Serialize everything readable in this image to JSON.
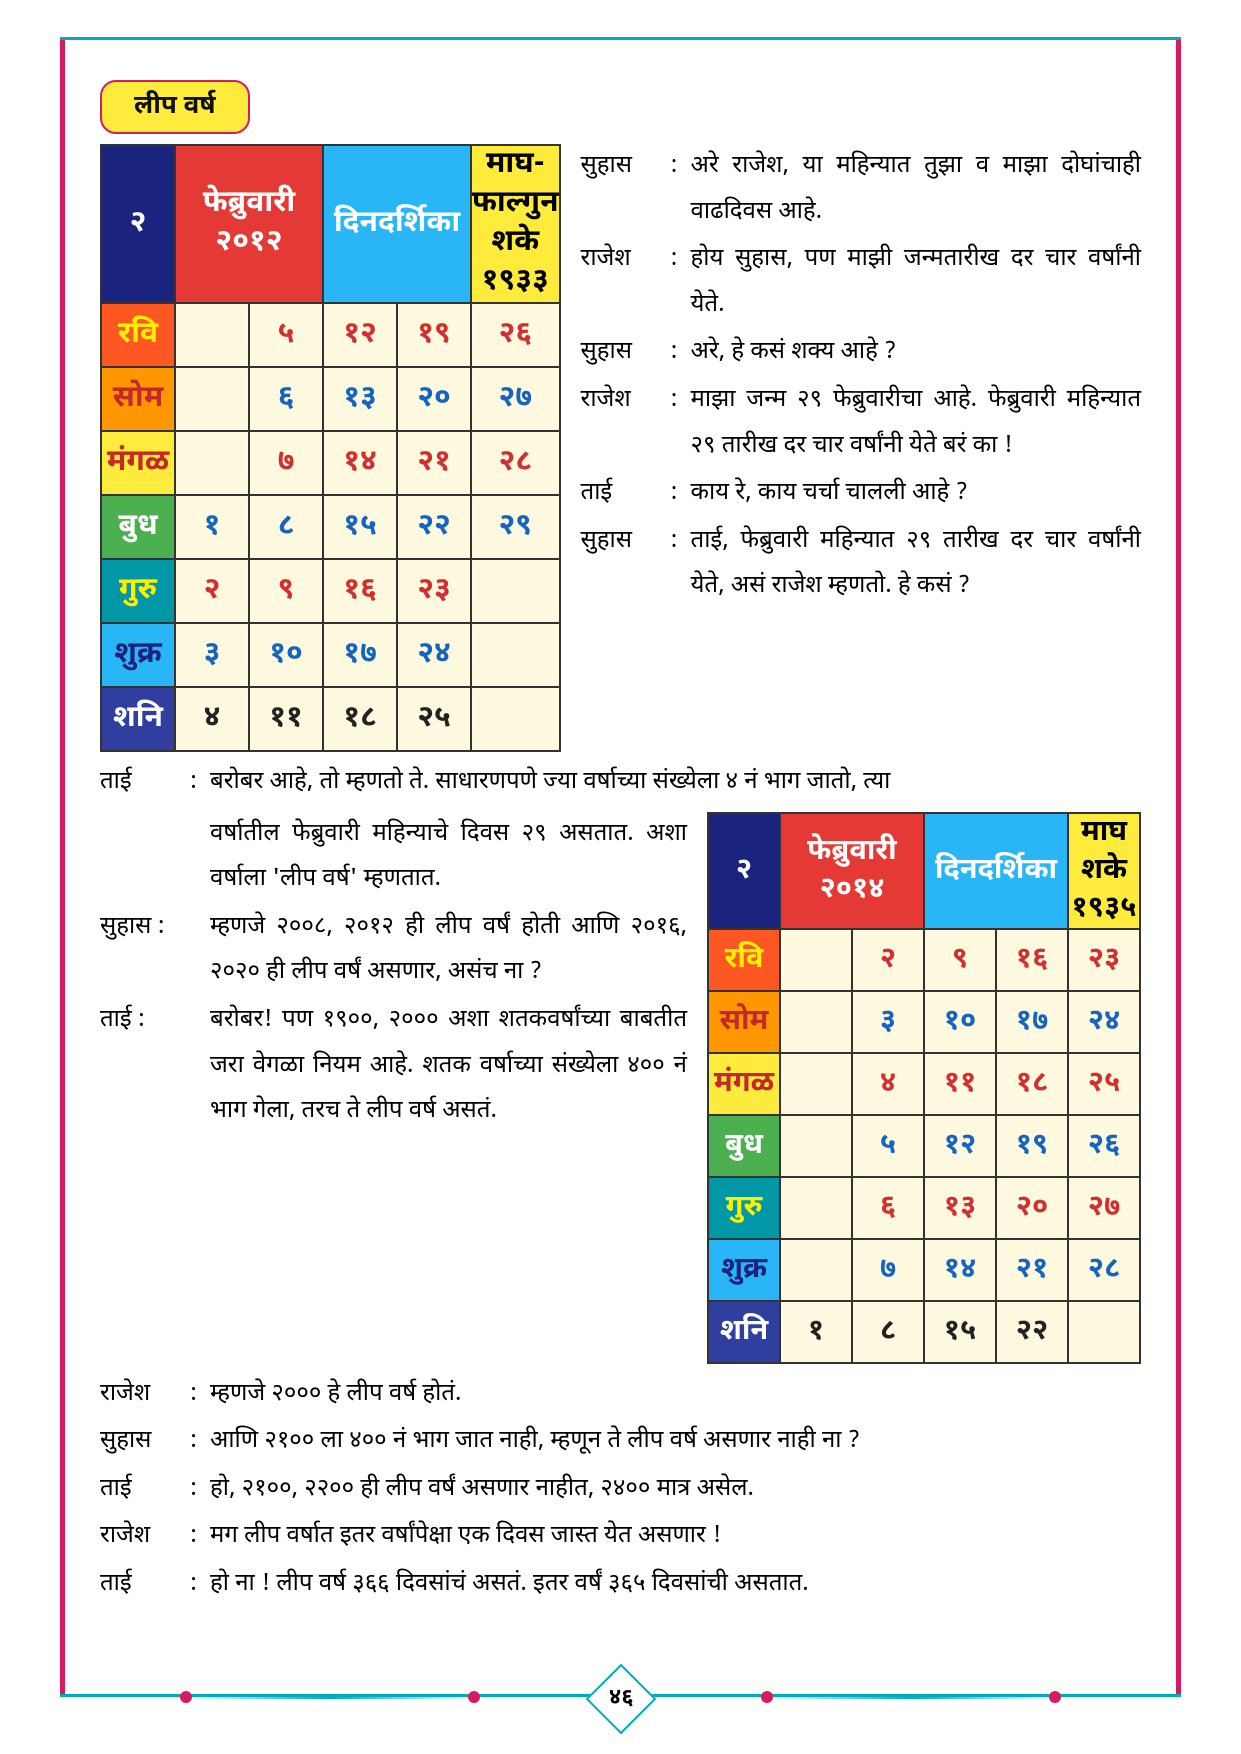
{
  "section_title": "लीप वर्ष",
  "page_number": "४६",
  "calendar1": {
    "corner": "२",
    "month": "फेब्रुवारी २०१२",
    "din_label": "दिनदर्शिका",
    "extra_label": "माघ-फाल्गुन शके १९३३",
    "day_labels": [
      "रवि",
      "सोम",
      "मंगळ",
      "बुध",
      "गुरु",
      "शुक्र",
      "शनि"
    ],
    "grid": [
      [
        "",
        "५",
        "१२",
        "१९",
        "२६"
      ],
      [
        "",
        "६",
        "१३",
        "२०",
        "२७"
      ],
      [
        "",
        "७",
        "१४",
        "२१",
        "२८"
      ],
      [
        "१",
        "८",
        "१५",
        "२२",
        "२९"
      ],
      [
        "२",
        "९",
        "१६",
        "२३",
        ""
      ],
      [
        "३",
        "१०",
        "१७",
        "२४",
        ""
      ],
      [
        "४",
        "११",
        "१८",
        "२५",
        ""
      ]
    ],
    "day_name_colors": [
      "day-ravi",
      "day-som",
      "day-mangal",
      "day-budh",
      "day-guru",
      "day-shukra",
      "day-shani"
    ],
    "num_colors": [
      "num-red",
      "num-blue",
      "num-red",
      "num-blue",
      "num-red",
      "num-blue",
      "num-black"
    ]
  },
  "calendar2": {
    "corner": "२",
    "month": "फेब्रुवारी २०१४",
    "din_label": "दिनदर्शिका",
    "extra_label": "माघ शके १९३५",
    "day_labels": [
      "रवि",
      "सोम",
      "मंगळ",
      "बुध",
      "गुरु",
      "शुक्र",
      "शनि"
    ],
    "grid": [
      [
        "",
        "२",
        "९",
        "१६",
        "२३"
      ],
      [
        "",
        "३",
        "१०",
        "१७",
        "२४"
      ],
      [
        "",
        "४",
        "११",
        "१८",
        "२५"
      ],
      [
        "",
        "५",
        "१२",
        "१९",
        "२६"
      ],
      [
        "",
        "६",
        "१३",
        "२०",
        "२७"
      ],
      [
        "",
        "७",
        "१४",
        "२१",
        "२८"
      ],
      [
        "१",
        "८",
        "१५",
        "२२",
        ""
      ]
    ],
    "day_name_colors": [
      "day-ravi",
      "day-som",
      "day-mangal",
      "day-budh",
      "day-guru",
      "day-shukra",
      "day-shani"
    ],
    "num_colors": [
      "num-red",
      "num-blue",
      "num-red",
      "num-blue",
      "num-red",
      "num-blue",
      "num-black"
    ]
  },
  "dialogue_top": [
    {
      "speaker": "सुहास",
      "text": "अरे राजेश, या महिन्यात तुझा व माझा दोघांचाही वाढदिवस आहे."
    },
    {
      "speaker": "राजेश",
      "text": "होय सुहास, पण माझी जन्मतारीख दर चार वर्षांनी येते."
    },
    {
      "speaker": "सुहास",
      "text": "अरे, हे कसं शक्य आहे ?"
    },
    {
      "speaker": "राजेश",
      "text": "माझा जन्म २९ फेब्रुवारीचा आहे. फेब्रुवारी महिन्यात २९ तारीख दर चार वर्षांनी येते बरं का !"
    },
    {
      "speaker": "ताई",
      "text": "काय रे, काय चर्चा चालली आहे ?"
    },
    {
      "speaker": "सुहास",
      "text": "ताई, फेब्रुवारी महिन्यात २९ तारीख दर चार वर्षांनी येते, असं राजेश म्हणतो. हे कसं ?"
    }
  ],
  "dialogue_mid_full": {
    "speaker": "ताई",
    "text_full": "बरोबर आहे, तो म्हणतो ते. साधारणपणे ज्या वर्षाच्या संख्येला ४ नं भाग जातो, त्या"
  },
  "dialogue_mid_left": [
    {
      "speaker": "",
      "text": "वर्षातील फेब्रुवारी महिन्याचे दिवस २९ असतात. अशा वर्षाला 'लीप वर्ष' म्हणतात."
    },
    {
      "speaker": "सुहास :",
      "text": "म्हणजे २००८, २०१२ ही लीप वर्षं होती आणि २०१६, २०२० ही लीप वर्षं असणार, असंच ना ?"
    },
    {
      "speaker": "ताई   :",
      "text": "बरोबर! पण १९००, २००० अशा शतकवर्षांच्या बाबतीत जरा वेगळा नियम आहे. शतक वर्षाच्या संख्येला ४०० नं भाग गेला, तरच ते लीप वर्ष असतं."
    }
  ],
  "dialogue_bottom": [
    {
      "speaker": "राजेश",
      "text": "म्हणजे २००० हे लीप वर्ष होतं."
    },
    {
      "speaker": "सुहास",
      "text": "आणि २१०० ला ४०० नं भाग जात नाही, म्हणून ते लीप वर्ष असणार नाही ना ?"
    },
    {
      "speaker": "ताई",
      "text": "हो, २१००, २२०० ही लीप वर्षं असणार नाहीत, २४०० मात्र असेल."
    },
    {
      "speaker": "राजेश",
      "text": "मग लीप वर्षात इतर वर्षांपेक्षा एक दिवस जास्त येत असणार !"
    },
    {
      "speaker": "ताई",
      "text": "हो ना ! लीप वर्ष ३६६ दिवसांचं असतं. इतर वर्षं ३६५ दिवसांची असतात."
    }
  ]
}
